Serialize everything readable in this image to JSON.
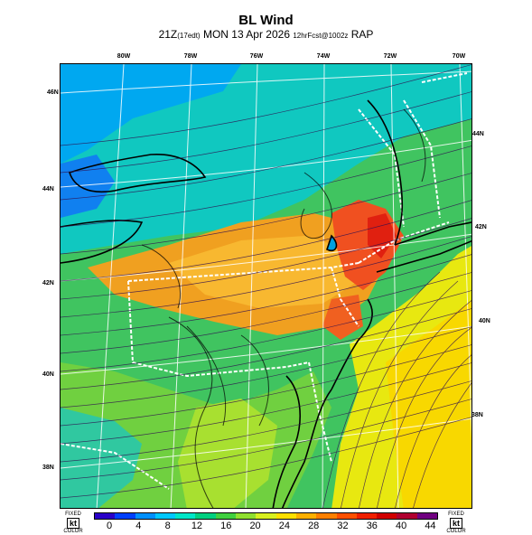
{
  "header": {
    "title": "BL Wind",
    "valid_time": "21Z",
    "time_note": "(17edt)",
    "date": "MON 13 Apr 2026",
    "forecast_note": "12hrFcst@1002z",
    "model": "RAP"
  },
  "map": {
    "lon_labels": [
      "80W",
      "78W",
      "76W",
      "74W",
      "72W",
      "70W"
    ],
    "lat_labels_left": [
      "46N",
      "44N",
      "42N",
      "40N",
      "38N"
    ],
    "lat_labels_right": [
      "44N",
      "42N",
      "40N",
      "38N"
    ]
  },
  "legend": {
    "unit": "kt",
    "side_label_top": "FIXED",
    "side_label_bottom": "COLOR",
    "ticks": [
      "0",
      "4",
      "8",
      "12",
      "16",
      "20",
      "24",
      "28",
      "32",
      "36",
      "40",
      "44"
    ],
    "colors": [
      "#2a00c8",
      "#0040ff",
      "#0090ff",
      "#00c8ff",
      "#00e6c8",
      "#00d080",
      "#40d040",
      "#90e030",
      "#d8f020",
      "#ffe000",
      "#ffb000",
      "#ff8000",
      "#ff5000",
      "#f02000",
      "#d00000",
      "#b00030",
      "#700080"
    ]
  }
}
